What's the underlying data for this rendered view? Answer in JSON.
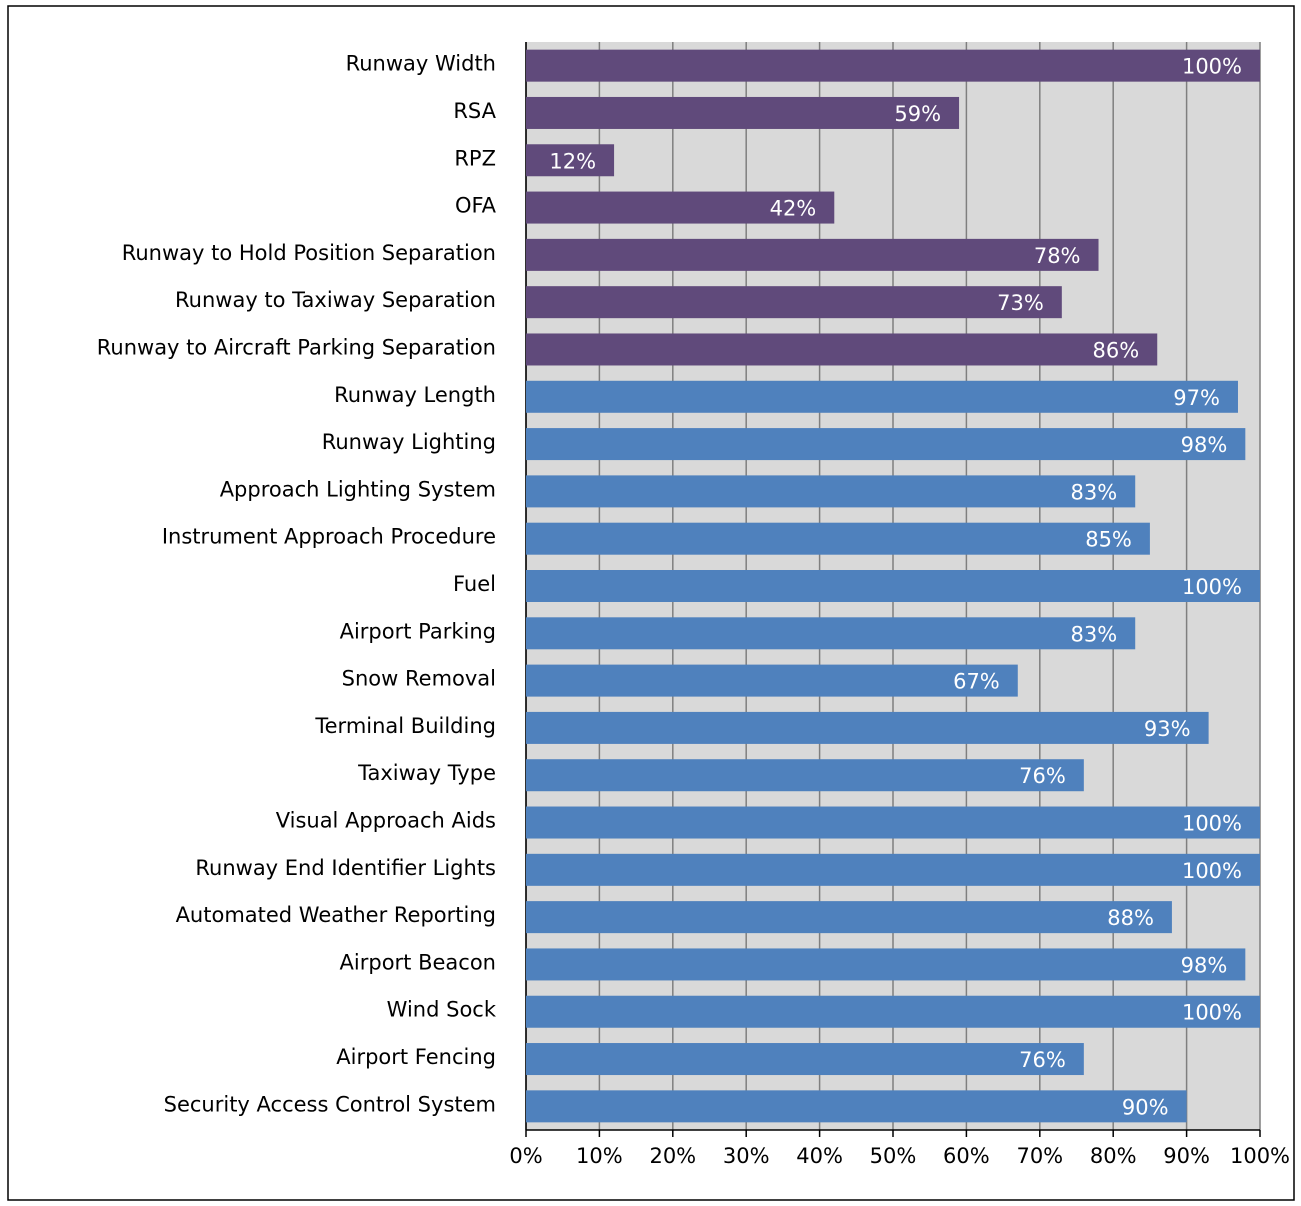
{
  "chart_data": {
    "type": "bar",
    "orientation": "horizontal",
    "categories": [
      "Runway Width",
      "RSA",
      "RPZ",
      "OFA",
      "Runway to Hold Position Separation",
      "Runway to Taxiway Separation",
      "Runway to Aircraft Parking Separation",
      "Runway Length",
      "Runway Lighting",
      "Approach Lighting System",
      "Instrument Approach Procedure",
      "Fuel",
      "Airport Parking",
      "Snow Removal",
      "Terminal Building",
      "Taxiway Type",
      "Visual Approach Aids",
      "Runway End Identifier Lights",
      "Automated Weather Reporting",
      "Airport Beacon",
      "Wind Sock",
      "Airport Fencing",
      "Security Access Control System"
    ],
    "values": [
      100,
      59,
      12,
      42,
      78,
      73,
      86,
      97,
      98,
      83,
      85,
      100,
      83,
      67,
      93,
      76,
      100,
      100,
      88,
      98,
      100,
      76,
      90
    ],
    "value_labels": [
      "100%",
      "59%",
      "12%",
      "42%",
      "78%",
      "73%",
      "86%",
      "97%",
      "98%",
      "83%",
      "85%",
      "100%",
      "83%",
      "67%",
      "93%",
      "76%",
      "100%",
      "100%",
      "88%",
      "98%",
      "100%",
      "76%",
      "90%"
    ],
    "colors": [
      "#604a7b",
      "#604a7b",
      "#604a7b",
      "#604a7b",
      "#604a7b",
      "#604a7b",
      "#604a7b",
      "#4f81bd",
      "#4f81bd",
      "#4f81bd",
      "#4f81bd",
      "#4f81bd",
      "#4f81bd",
      "#4f81bd",
      "#4f81bd",
      "#4f81bd",
      "#4f81bd",
      "#4f81bd",
      "#4f81bd",
      "#4f81bd",
      "#4f81bd",
      "#4f81bd",
      "#4f81bd"
    ],
    "xlim": [
      0,
      100
    ],
    "xticks": [
      {
        "value": 0,
        "label": "0%"
      },
      {
        "value": 10,
        "label": "10%"
      },
      {
        "value": 20,
        "label": "20%"
      },
      {
        "value": 30,
        "label": "30%"
      },
      {
        "value": 40,
        "label": "40%"
      },
      {
        "value": 50,
        "label": "50%"
      },
      {
        "value": 60,
        "label": "60%"
      },
      {
        "value": 70,
        "label": "70%"
      },
      {
        "value": 80,
        "label": "80%"
      },
      {
        "value": 90,
        "label": "90%"
      },
      {
        "value": 100,
        "label": "100%"
      }
    ],
    "grid": true
  }
}
